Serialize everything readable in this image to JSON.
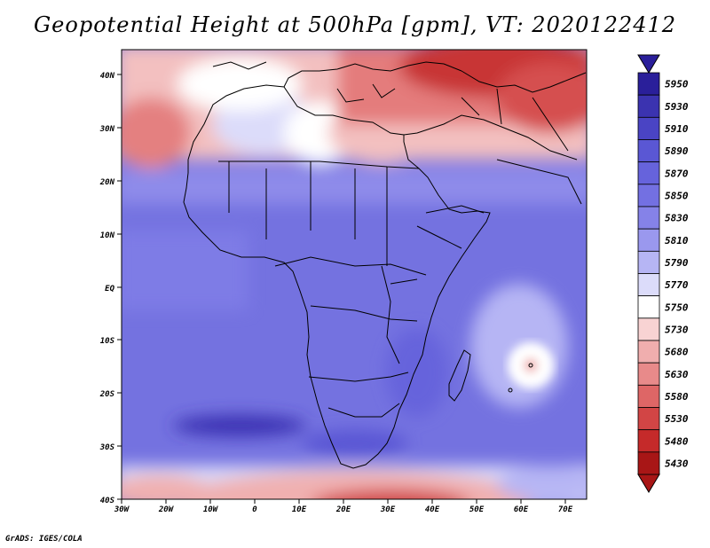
{
  "title": "Geopotential Height at 500hPa [gpm], VT: 2020122412",
  "credit": "GrADS: IGES/COLA",
  "colors": {
    "deep_blue": "#3a2fa6",
    "mid_blue": "#6f6ce0",
    "light_blue": "#b9b9f2",
    "white": "#ffffff",
    "light_red": "#f0b0b0",
    "mid_red": "#e06a6a",
    "dark_red": "#b02020"
  },
  "map": {
    "lat_labels": [
      "40N",
      "30N",
      "20N",
      "10N",
      "EQ",
      "10S",
      "20S",
      "30S",
      "40S"
    ],
    "lon_labels": [
      "30W",
      "20W",
      "10W",
      "0",
      "10E",
      "20E",
      "30E",
      "40E",
      "50E",
      "60E",
      "70E"
    ]
  },
  "colorbar": {
    "levels": [
      "5950",
      "5930",
      "5910",
      "5890",
      "5870",
      "5850",
      "5830",
      "5810",
      "5790",
      "5770",
      "5750",
      "5730",
      "5680",
      "5630",
      "5580",
      "5530",
      "5480",
      "5430"
    ],
    "colors": [
      "#2a1f9a",
      "#3b33b0",
      "#4a44c4",
      "#5a57d4",
      "#6663dc",
      "#7370e2",
      "#8582e8",
      "#9a98ee",
      "#b6b5f4",
      "#dcdcfa",
      "#ffffff",
      "#f8d3d3",
      "#f0aeae",
      "#e88a8a",
      "#de6666",
      "#d24545",
      "#c52a2a",
      "#a81616"
    ]
  }
}
